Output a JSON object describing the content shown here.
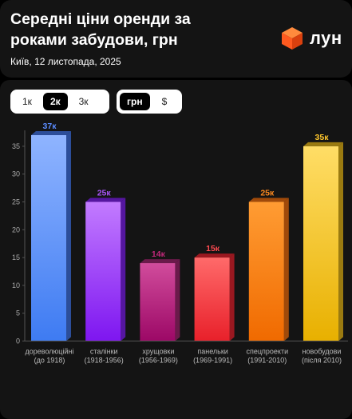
{
  "header": {
    "title": "Середні ціни оренди за роками забудови, грн",
    "subtitle": "Київ, 12 листопада, 2025",
    "logo_text": "лун",
    "logo_icon": "orange-cube-icon",
    "logo_color": "#FF5A1F"
  },
  "controls": {
    "rooms": [
      {
        "label": "1к",
        "active": false
      },
      {
        "label": "2к",
        "active": true
      },
      {
        "label": "3к",
        "active": false
      }
    ],
    "currency": [
      {
        "label": "грн",
        "active": true
      },
      {
        "label": "$",
        "active": false
      }
    ]
  },
  "chart_data": {
    "type": "bar",
    "categories": [
      [
        "дореволюційні",
        "(до 1918)"
      ],
      [
        "сталінки",
        "(1918-1956)"
      ],
      [
        "хрущовки",
        "(1956-1969)"
      ],
      [
        "панельки",
        "(1969-1991)"
      ],
      [
        "спецпроекти",
        "(1991-2010)"
      ],
      [
        "новобудови",
        "(після 2010)"
      ]
    ],
    "values": [
      37,
      25,
      14,
      15,
      25,
      35
    ],
    "value_labels": [
      "37к",
      "25к",
      "14к",
      "15к",
      "25к",
      "35к"
    ],
    "ylim": [
      0,
      37
    ],
    "yticks": [
      0,
      5,
      10,
      15,
      20,
      25,
      30,
      35
    ],
    "grid": false,
    "colors": [
      {
        "top": "#8FB4FF",
        "bottom": "#3E7BF2",
        "side": "#2C4E9A",
        "label": "#5B8CFF"
      },
      {
        "top": "#C27BFF",
        "bottom": "#7E16F0",
        "side": "#5516A0",
        "label": "#A855F7"
      },
      {
        "top": "#D14C9C",
        "bottom": "#9C0866",
        "side": "#6A1A4A",
        "label": "#C0287A"
      },
      {
        "top": "#FF6A6A",
        "bottom": "#E8202A",
        "side": "#9A1820",
        "label": "#FF4A50"
      },
      {
        "top": "#FF9C33",
        "bottom": "#F06A00",
        "side": "#A04A0A",
        "label": "#FF8A1F"
      },
      {
        "top": "#FFDD66",
        "bottom": "#E8B000",
        "side": "#9A7A10",
        "label": "#FFC72C"
      }
    ]
  }
}
